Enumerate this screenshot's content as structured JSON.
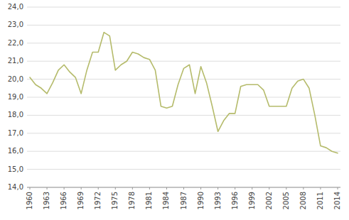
{
  "chart_data": {
    "type": "line",
    "x": [
      1960,
      1961,
      1962,
      1963,
      1964,
      1965,
      1966,
      1967,
      1968,
      1969,
      1970,
      1971,
      1972,
      1973,
      1974,
      1975,
      1976,
      1977,
      1978,
      1979,
      1980,
      1981,
      1982,
      1983,
      1984,
      1985,
      1986,
      1987,
      1988,
      1989,
      1990,
      1991,
      1992,
      1993,
      1994,
      1995,
      1996,
      1997,
      1998,
      1999,
      2000,
      2001,
      2002,
      2003,
      2004,
      2005,
      2006,
      2007,
      2008,
      2009,
      2010,
      2011,
      2012,
      2013,
      2014
    ],
    "values": [
      20.1,
      19.7,
      19.5,
      19.2,
      19.8,
      20.5,
      20.8,
      20.4,
      20.1,
      19.2,
      20.5,
      21.5,
      21.5,
      22.6,
      22.4,
      20.5,
      20.8,
      21.0,
      21.5,
      21.4,
      21.2,
      21.1,
      20.5,
      18.5,
      18.4,
      18.5,
      19.7,
      20.6,
      20.8,
      19.2,
      20.7,
      19.8,
      18.5,
      17.1,
      17.7,
      18.1,
      18.1,
      19.6,
      19.7,
      19.7,
      19.7,
      19.4,
      18.5,
      18.5,
      18.5,
      18.5,
      19.5,
      19.9,
      20.0,
      19.5,
      18.0,
      16.3,
      16.2,
      16.0,
      15.9
    ],
    "color": "#b5bb6b",
    "xlim": [
      1959.5,
      2014.5
    ],
    "xticks": [
      1960,
      1963,
      1966,
      1969,
      1972,
      1975,
      1978,
      1981,
      1984,
      1987,
      1990,
      1993,
      1996,
      1999,
      2002,
      2005,
      2008,
      2011,
      2014
    ],
    "ylim": [
      14.0,
      24.0
    ],
    "yticks": [
      {
        "value": 14.0,
        "label": "14,0"
      },
      {
        "value": 15.0,
        "label": "15,0"
      },
      {
        "value": 16.0,
        "label": "16,0"
      },
      {
        "value": 17.0,
        "label": "17,0"
      },
      {
        "value": 18.0,
        "label": "18,0"
      },
      {
        "value": 19.0,
        "label": "19,0"
      },
      {
        "value": 20.0,
        "label": "20,0"
      },
      {
        "value": 21.0,
        "label": "21,0"
      },
      {
        "value": 22.0,
        "label": "22,0"
      },
      {
        "value": 23.0,
        "label": "23,0"
      },
      {
        "value": 24.0,
        "label": "24,0"
      }
    ],
    "grid": true
  }
}
